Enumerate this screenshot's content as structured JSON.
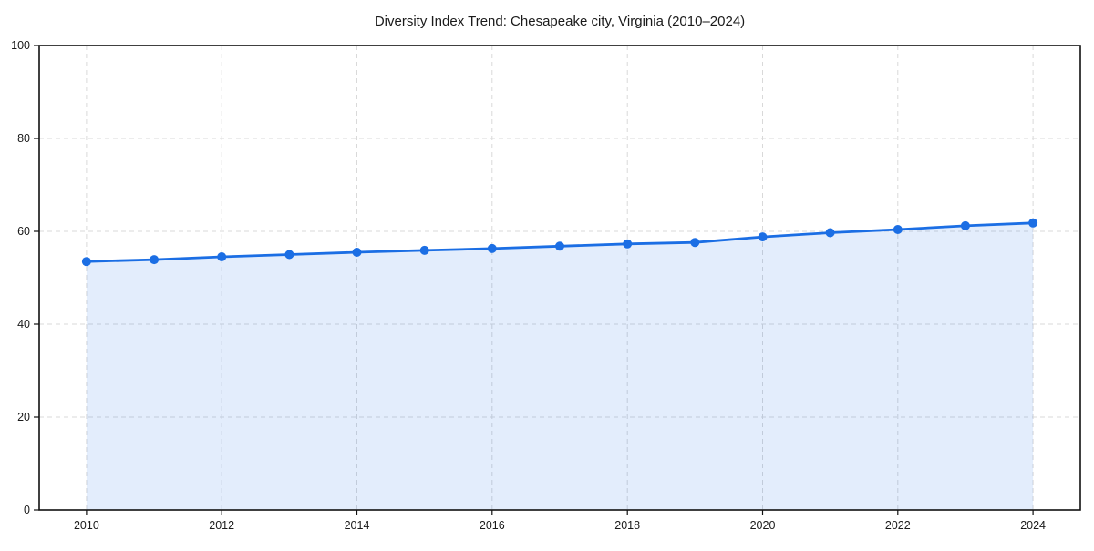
{
  "chart_data": {
    "type": "area",
    "title": "Diversity Index Trend: Chesapeake city, Virginia (2010–2024)",
    "series_name": "Diversity Index",
    "x": [
      2010,
      2011,
      2012,
      2013,
      2014,
      2015,
      2016,
      2017,
      2018,
      2019,
      2020,
      2021,
      2022,
      2023,
      2024
    ],
    "values": [
      53.5,
      53.9,
      54.5,
      55.0,
      55.5,
      55.9,
      56.3,
      56.8,
      57.3,
      57.6,
      58.8,
      59.7,
      60.4,
      61.2,
      61.8
    ],
    "xlabel": "",
    "ylabel": "",
    "xlim": [
      2009.3,
      2024.7
    ],
    "ylim": [
      0,
      100
    ],
    "xticks": [
      2010,
      2012,
      2014,
      2016,
      2018,
      2020,
      2022,
      2024
    ],
    "yticks": [
      0,
      20,
      40,
      60,
      80,
      100
    ],
    "grid": true,
    "grid_style": "dashed",
    "legend_position": "none",
    "colors": {
      "line": "#1b6ee4",
      "marker": "#1b6ee4",
      "fill": "#1b6ee4",
      "fill_opacity": 0.12,
      "axis": "#111111",
      "grid": "#d9d9d9",
      "tick_label": "#1a1a1a",
      "title": "#1a1a1a",
      "background": "#ffffff"
    }
  }
}
